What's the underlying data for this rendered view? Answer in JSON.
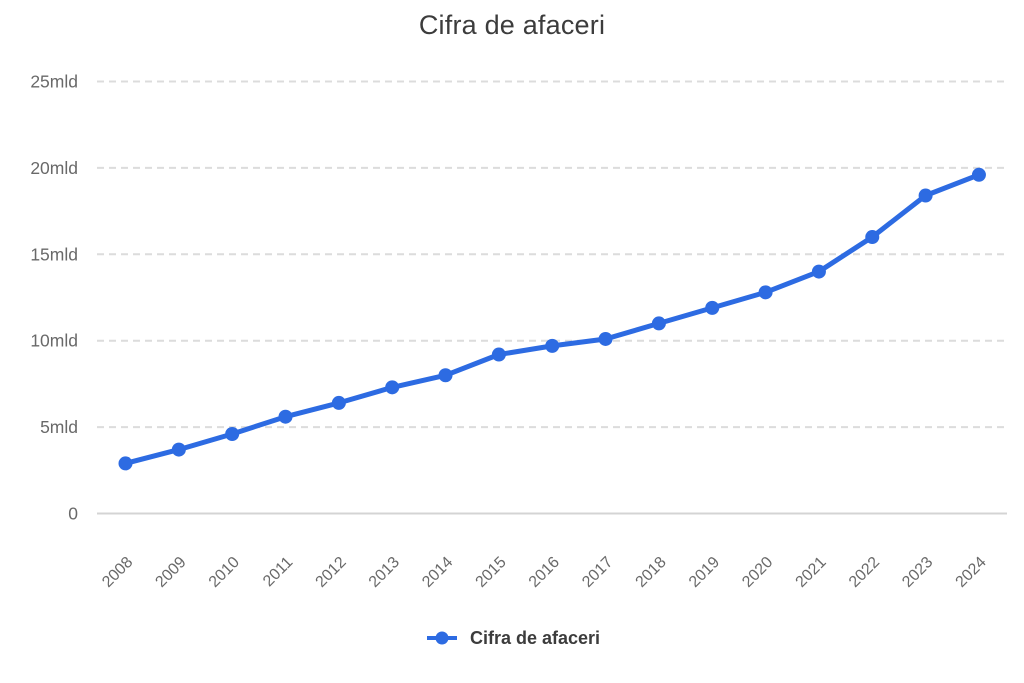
{
  "title": "Cifra de afaceri",
  "legend": {
    "label": "Cifra de afaceri"
  },
  "colors": {
    "line": "#2d6be2",
    "marker": "#2d6be2",
    "grid_line": "#dcdcdc",
    "axis_line": "#d4d4d4",
    "tick_text": "#696969",
    "title_text": "#3c3c3c",
    "legend_text": "#3c3c3c",
    "background": "#ffffff"
  },
  "chart_data": {
    "type": "line",
    "title": "Cifra de afaceri",
    "x": [
      2008,
      2009,
      2010,
      2011,
      2012,
      2013,
      2014,
      2015,
      2016,
      2017,
      2018,
      2019,
      2020,
      2021,
      2022,
      2023,
      2024
    ],
    "series": [
      {
        "name": "Cifra de afaceri",
        "values": [
          2.9,
          3.7,
          4.6,
          5.6,
          6.4,
          7.3,
          8.0,
          9.2,
          9.7,
          10.1,
          11.0,
          11.9,
          12.8,
          14.0,
          16.0,
          18.4,
          19.6
        ]
      }
    ],
    "unit": "mld",
    "xlabel": "",
    "ylabel": "",
    "ylim": [
      0,
      25
    ],
    "ytick_values": [
      0,
      5,
      10,
      15,
      20,
      25
    ],
    "ytick_labels": [
      "0",
      "5mld",
      "10mld",
      "15mld",
      "20mld",
      "25mld"
    ],
    "grid": "horizontal-dashed",
    "legend_position": "bottom",
    "marker": "circle"
  }
}
